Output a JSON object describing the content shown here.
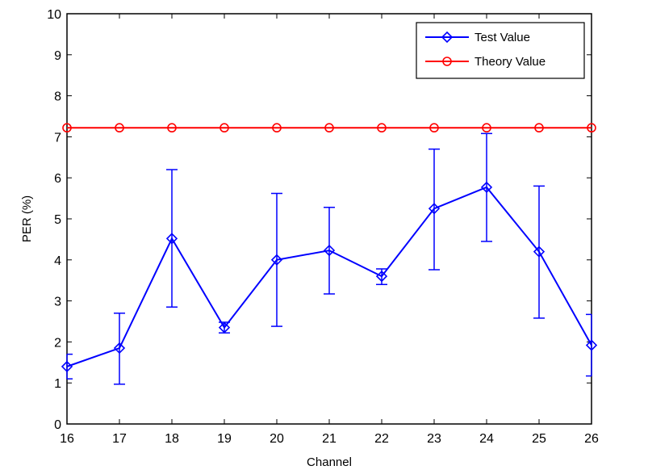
{
  "chart_data": {
    "type": "line",
    "xlabel": "Channel",
    "ylabel": "PER (%)",
    "x": [
      16,
      17,
      18,
      19,
      20,
      21,
      22,
      23,
      24,
      25,
      26
    ],
    "xlim": [
      16,
      26
    ],
    "ylim": [
      0,
      10
    ],
    "x_ticks": [
      "16",
      "17",
      "18",
      "19",
      "20",
      "21",
      "22",
      "23",
      "24",
      "25",
      "26"
    ],
    "y_ticks": [
      "0",
      "1",
      "2",
      "3",
      "4",
      "5",
      "6",
      "7",
      "8",
      "9",
      "10"
    ],
    "grid": false,
    "legend_position": "top-right",
    "series": [
      {
        "name": "Test Value",
        "color": "#0000ff",
        "marker": "diamond",
        "values": [
          1.4,
          1.85,
          4.52,
          2.35,
          4.0,
          4.23,
          3.6,
          5.25,
          5.77,
          4.2,
          1.92
        ],
        "error_low": [
          1.1,
          0.97,
          2.85,
          2.22,
          2.38,
          3.17,
          3.4,
          3.76,
          4.45,
          2.58,
          1.17
        ],
        "error_high": [
          1.7,
          2.7,
          6.2,
          2.48,
          5.62,
          5.28,
          3.78,
          6.7,
          7.08,
          5.8,
          2.67
        ]
      },
      {
        "name": "Theory Value",
        "color": "#ff0000",
        "marker": "circle",
        "values": [
          7.22,
          7.22,
          7.22,
          7.22,
          7.22,
          7.22,
          7.22,
          7.22,
          7.22,
          7.22,
          7.22
        ]
      }
    ]
  }
}
